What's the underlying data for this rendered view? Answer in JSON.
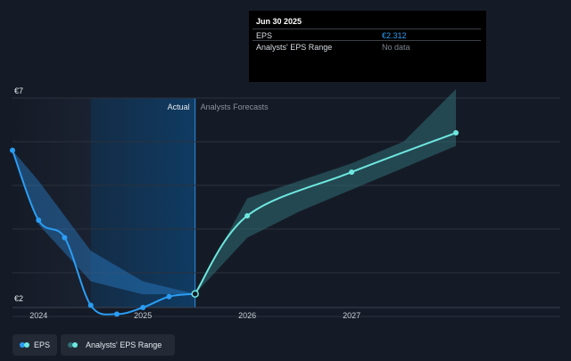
{
  "tooltip": {
    "date": "Jun 30 2025",
    "rows": [
      {
        "label": "EPS",
        "value": "€2.312",
        "color": "#2a9df4"
      },
      {
        "label": "Analysts' EPS Range",
        "value": "No data",
        "color": "#7c8491"
      }
    ]
  },
  "regions": {
    "actual_label": "Actual",
    "forecast_label": "Analysts Forecasts"
  },
  "legend": [
    {
      "label": "EPS",
      "color": "#2a9df4"
    },
    {
      "label": "Analysts' EPS Range",
      "color": "#2f6e74"
    }
  ],
  "colors": {
    "actual_line": "#2a9df4",
    "forecast_line": "#6ee7df",
    "actual_band": "#2a7fc9",
    "forecast_band": "#2f6e74"
  },
  "chart_data": {
    "type": "line",
    "y_tick_labels": [
      "€7",
      "€2"
    ],
    "ylim": [
      2,
      7
    ],
    "x_tick_labels": [
      "2024",
      "2025",
      "2026",
      "2027"
    ],
    "x_ticks": [
      2024.0,
      2025.0,
      2026.0,
      2027.0
    ],
    "xlim": [
      2023.75,
      2029.0
    ],
    "highlight_start": 2024.5,
    "actual_end": 2025.5,
    "series": [
      {
        "name": "EPS",
        "segment": "actual",
        "x": [
          2023.75,
          2024.0,
          2024.25,
          2024.5,
          2024.75,
          2025.0,
          2025.25,
          2025.5
        ],
        "y": [
          5.6,
          4.0,
          3.6,
          2.05,
          1.85,
          2.0,
          2.25,
          2.312
        ]
      },
      {
        "name": "EPS",
        "segment": "forecast",
        "x": [
          2025.5,
          2026.0,
          2027.0,
          2028.0
        ],
        "y": [
          2.312,
          4.1,
          5.1,
          6.0
        ]
      }
    ],
    "range": {
      "name": "Analysts' EPS Range",
      "actual_x": [
        2023.75,
        2024.0,
        2024.5,
        2025.0,
        2025.5
      ],
      "actual_low": [
        5.6,
        3.9,
        2.6,
        2.3,
        2.312
      ],
      "actual_high": [
        5.6,
        4.9,
        3.3,
        2.6,
        2.312
      ],
      "forecast_x": [
        2025.5,
        2026.0,
        2026.5,
        2027.0,
        2027.5,
        2028.0
      ],
      "forecast_low": [
        2.312,
        3.6,
        4.2,
        4.7,
        5.2,
        5.7
      ],
      "forecast_high": [
        2.312,
        4.5,
        4.9,
        5.3,
        5.8,
        7.0
      ]
    }
  }
}
